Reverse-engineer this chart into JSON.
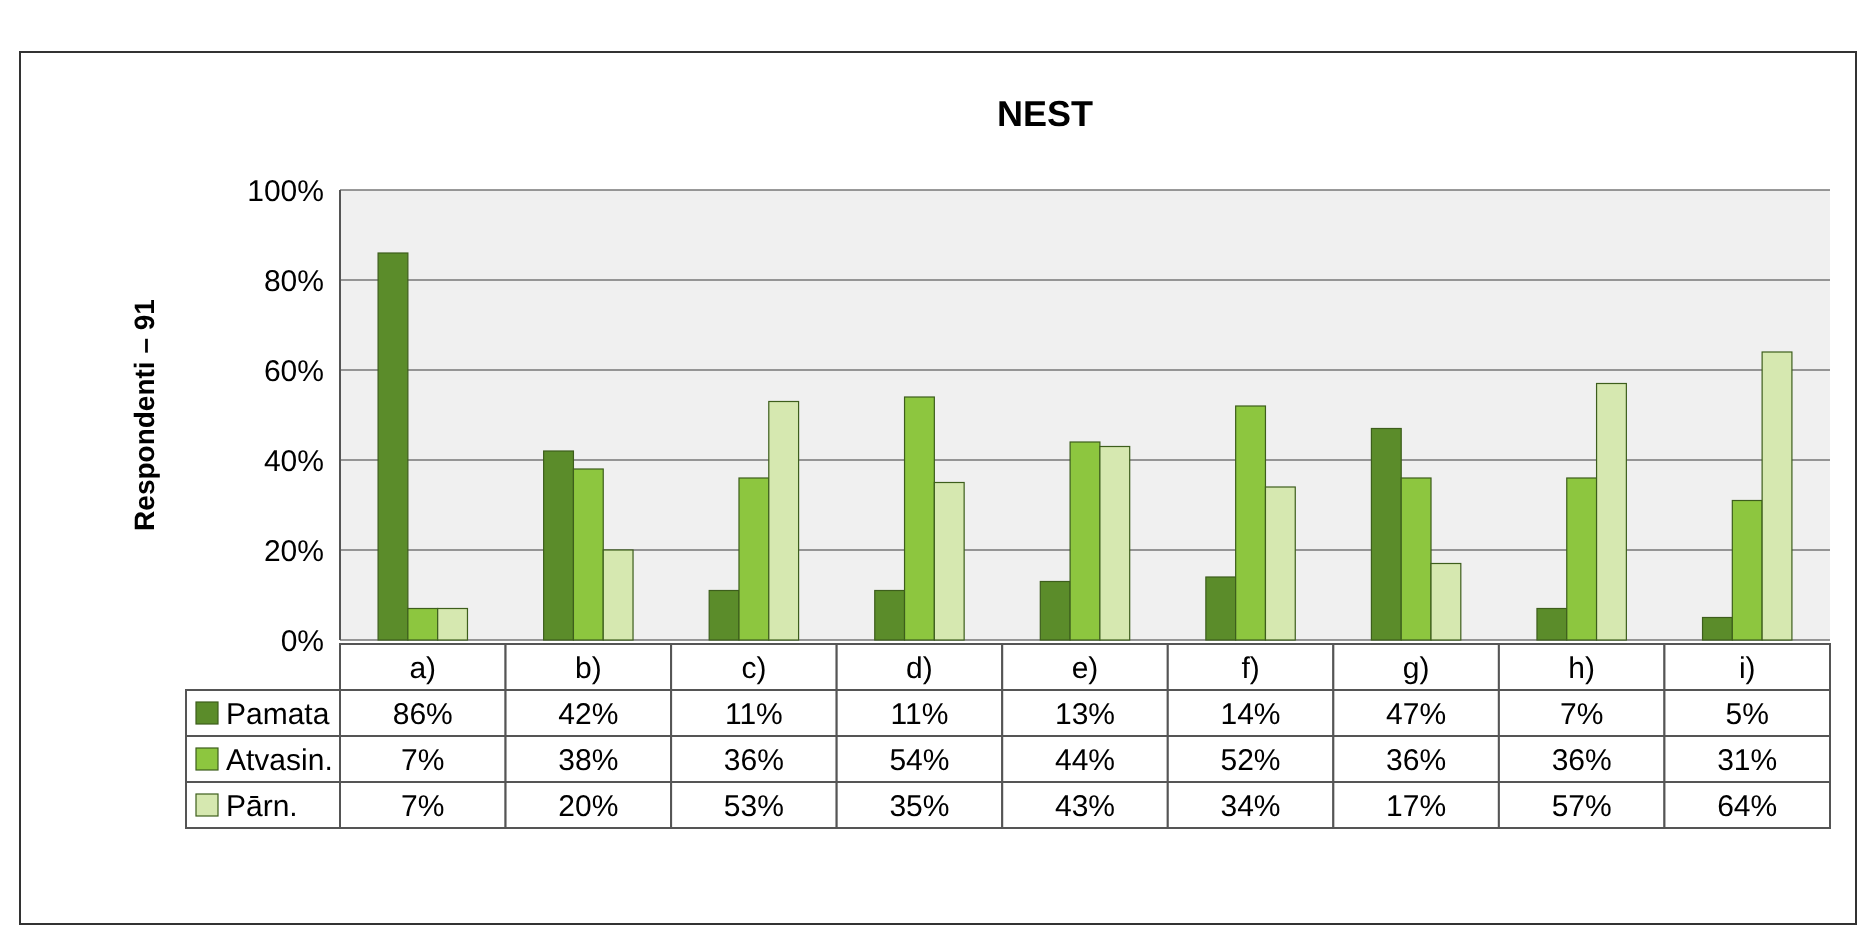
{
  "chart_data": {
    "type": "bar",
    "title": "NEST",
    "ylabel": "Respondenti – 91",
    "categories": [
      "a)",
      "b)",
      "c)",
      "d)",
      "e)",
      "f)",
      "g)",
      "h)",
      "i)"
    ],
    "series": [
      {
        "name": "Pamata",
        "color": "#5b8c2a",
        "values": [
          86,
          42,
          11,
          11,
          13,
          14,
          47,
          7,
          5
        ],
        "value_labels": [
          "86%",
          "42%",
          "11%",
          "11%",
          "13%",
          "14%",
          "47%",
          "7%",
          "5%"
        ]
      },
      {
        "name": "Atvasin.",
        "color": "#8dc63f",
        "values": [
          7,
          38,
          36,
          54,
          44,
          52,
          36,
          36,
          31
        ],
        "value_labels": [
          "7%",
          "38%",
          "36%",
          "54%",
          "44%",
          "52%",
          "36%",
          "36%",
          "31%"
        ]
      },
      {
        "name": "Pārn.",
        "color": "#d6e8b0",
        "values": [
          7,
          20,
          53,
          35,
          43,
          34,
          17,
          57,
          64
        ],
        "value_labels": [
          "7%",
          "20%",
          "53%",
          "35%",
          "43%",
          "34%",
          "17%",
          "57%",
          "64%"
        ]
      }
    ],
    "ylim": [
      0,
      100
    ],
    "yticks": [
      {
        "value": 0,
        "label": "0%"
      },
      {
        "value": 20,
        "label": "20%"
      },
      {
        "value": 40,
        "label": "40%"
      },
      {
        "value": 60,
        "label": "60%"
      },
      {
        "value": 80,
        "label": "80%"
      },
      {
        "value": 100,
        "label": "100%"
      }
    ],
    "grid": "y",
    "legend": "bottom"
  }
}
